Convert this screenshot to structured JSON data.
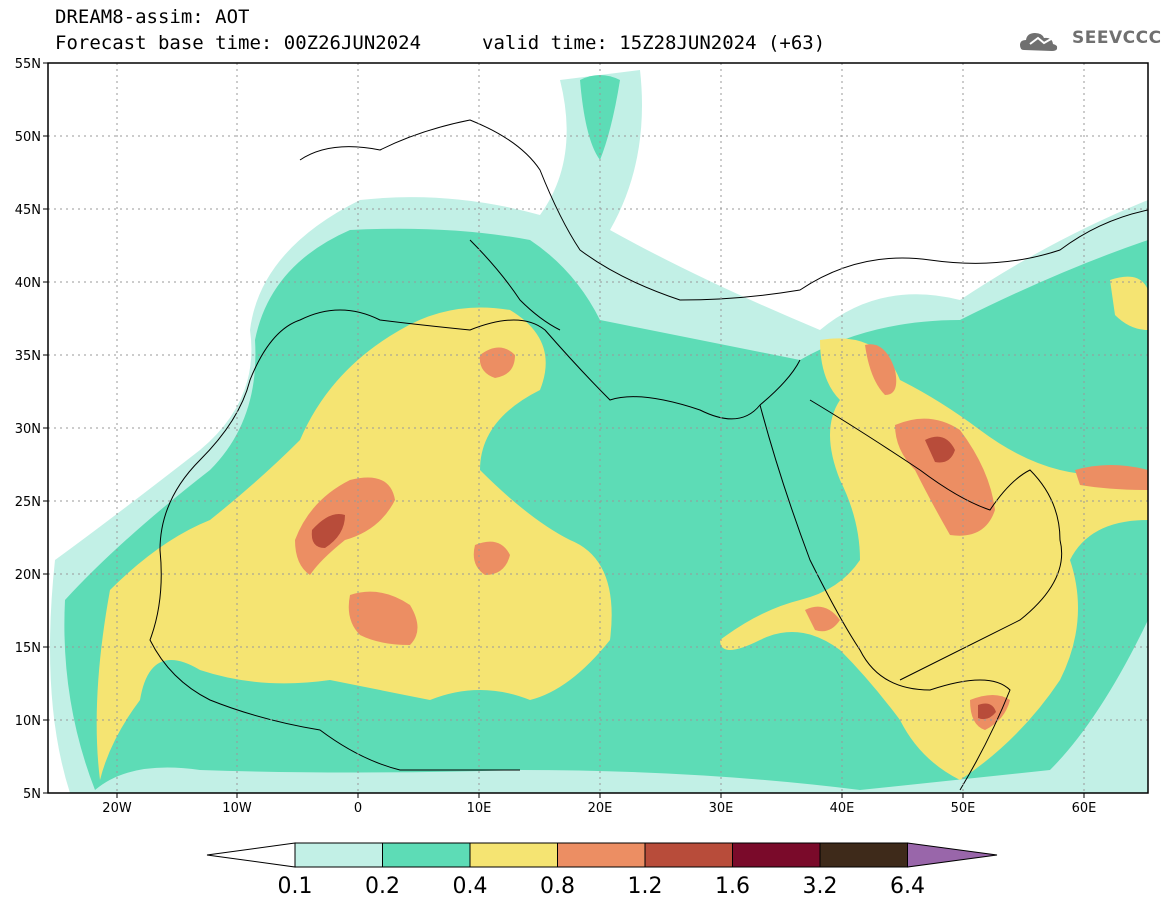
{
  "header": {
    "line1": "DREAM8-assim: AOT",
    "line2": "Forecast base time: 00Z26JUN2024",
    "valid": "valid time: 15Z28JUN2024 (+63)",
    "logo_text": "SEEVCCC"
  },
  "map": {
    "lon_ticks": [
      "20W",
      "10W",
      "0",
      "10E",
      "20E",
      "30E",
      "40E",
      "50E",
      "60E"
    ],
    "lat_ticks": [
      "55N",
      "50N",
      "45N",
      "40N",
      "35N",
      "30N",
      "25N",
      "20N",
      "15N",
      "10N",
      "5N"
    ]
  },
  "colorbar": {
    "labels": [
      "0.1",
      "0.2",
      "0.4",
      "0.8",
      "1.2",
      "1.6",
      "3.2",
      "6.4"
    ],
    "colors": [
      "#c2f0e6",
      "#5ddcb6",
      "#f5e472",
      "#ec8e63",
      "#b84c3a",
      "#7a0a2a",
      "#3e2a1a",
      "#9966aa"
    ]
  },
  "palette": {
    "lightcyan": "#c2f0e6",
    "green": "#5ddcb6",
    "yellow": "#f5e472",
    "orange": "#ec8e63",
    "redbrown": "#b84c3a",
    "dark": "#7a0a2a"
  }
}
